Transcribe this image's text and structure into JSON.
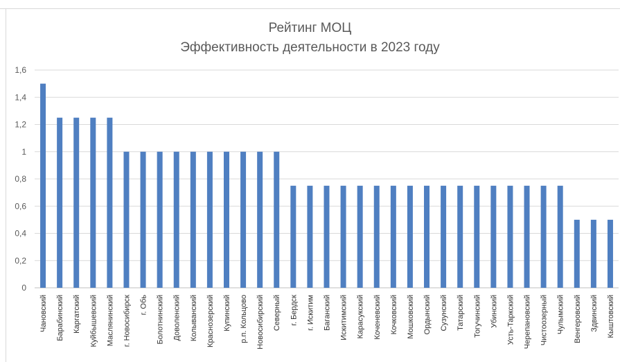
{
  "chart_data": {
    "type": "bar",
    "title": "Рейтинг МОЦ",
    "subtitle": "Эффективность деятельности в 2023 году",
    "xlabel": "",
    "ylabel": "",
    "ylim": [
      0,
      1.6
    ],
    "yticks": [
      "0",
      "0,2",
      "0,4",
      "0,6",
      "0,8",
      "1",
      "1,2",
      "1,4",
      "1,6"
    ],
    "grid": true,
    "bar_color": "#4f7fc1",
    "categories": [
      "Чановский",
      "Барабинский",
      "Каргатский",
      "Куйбышевский",
      "Маслянинский",
      "г. Новосибирск",
      "г. Обь",
      "Болотнинский",
      "Доволенский",
      "Колыванский",
      "Краснозерский",
      "Купинский",
      "р.п. Кольцово",
      "Новосибирский",
      "Северный",
      "г. Бердск",
      "г. Искитим",
      "Баганский",
      "Искитимский",
      "Карасукский",
      "Коченевский",
      "Кочковский",
      "Мошковский",
      "Ордынский",
      "Сузунский",
      "Татарский",
      "Тогучинский",
      "Убинский",
      "Усть-Таркский",
      "Черепановский",
      "Чистоозерный",
      "Чулымский",
      "Венгеровский",
      "Здвинский",
      "Кыштовский"
    ],
    "values": [
      1.5,
      1.25,
      1.25,
      1.25,
      1.25,
      1,
      1,
      1,
      1,
      1,
      1,
      1,
      1,
      1,
      1,
      0.75,
      0.75,
      0.75,
      0.75,
      0.75,
      0.75,
      0.75,
      0.75,
      0.75,
      0.75,
      0.75,
      0.75,
      0.75,
      0.75,
      0.75,
      0.75,
      0.75,
      0.5,
      0.5,
      0.5
    ]
  }
}
